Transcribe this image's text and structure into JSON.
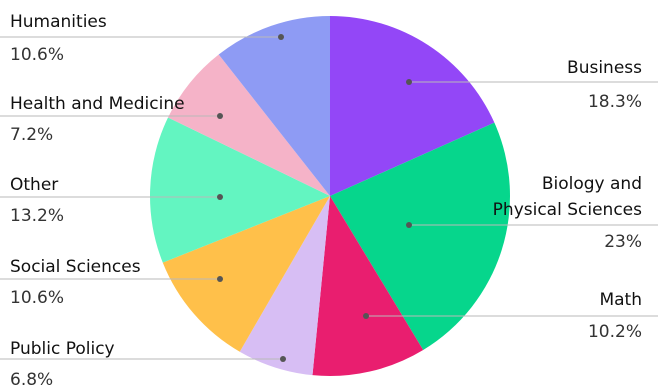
{
  "chart_data": {
    "type": "pie",
    "title": "",
    "slices": [
      {
        "name": "Business",
        "label_lines": [
          "Business"
        ],
        "value": 18.3,
        "value_text": "18.3%",
        "color": "#9347F7"
      },
      {
        "name": "Biology and Physical Sciences",
        "label_lines": [
          "Biology and",
          "Physical Sciences"
        ],
        "value": 23,
        "value_text": "23%",
        "color": "#06D68C"
      },
      {
        "name": "Math",
        "label_lines": [
          "Math"
        ],
        "value": 10.2,
        "value_text": "10.2%",
        "color": "#E91E6F"
      },
      {
        "name": "Public Policy",
        "label_lines": [
          "Public Policy"
        ],
        "value": 6.8,
        "value_text": "6.8%",
        "color": "#D7BEF4"
      },
      {
        "name": "Social Sciences",
        "label_lines": [
          "Social Sciences"
        ],
        "value": 10.6,
        "value_text": "10.6%",
        "color": "#FFC04A"
      },
      {
        "name": "Other",
        "label_lines": [
          "Other"
        ],
        "value": 13.2,
        "value_text": "13.2%",
        "color": "#63F5C1"
      },
      {
        "name": "Health and Medicine",
        "label_lines": [
          "Health and Medicine"
        ],
        "value": 7.2,
        "value_text": "7.2%",
        "color": "#F5B3C8"
      },
      {
        "name": "Humanities",
        "label_lines": [
          "Humanities"
        ],
        "value": 10.6,
        "value_text": "10.6%",
        "color": "#8E9BF4"
      }
    ]
  }
}
